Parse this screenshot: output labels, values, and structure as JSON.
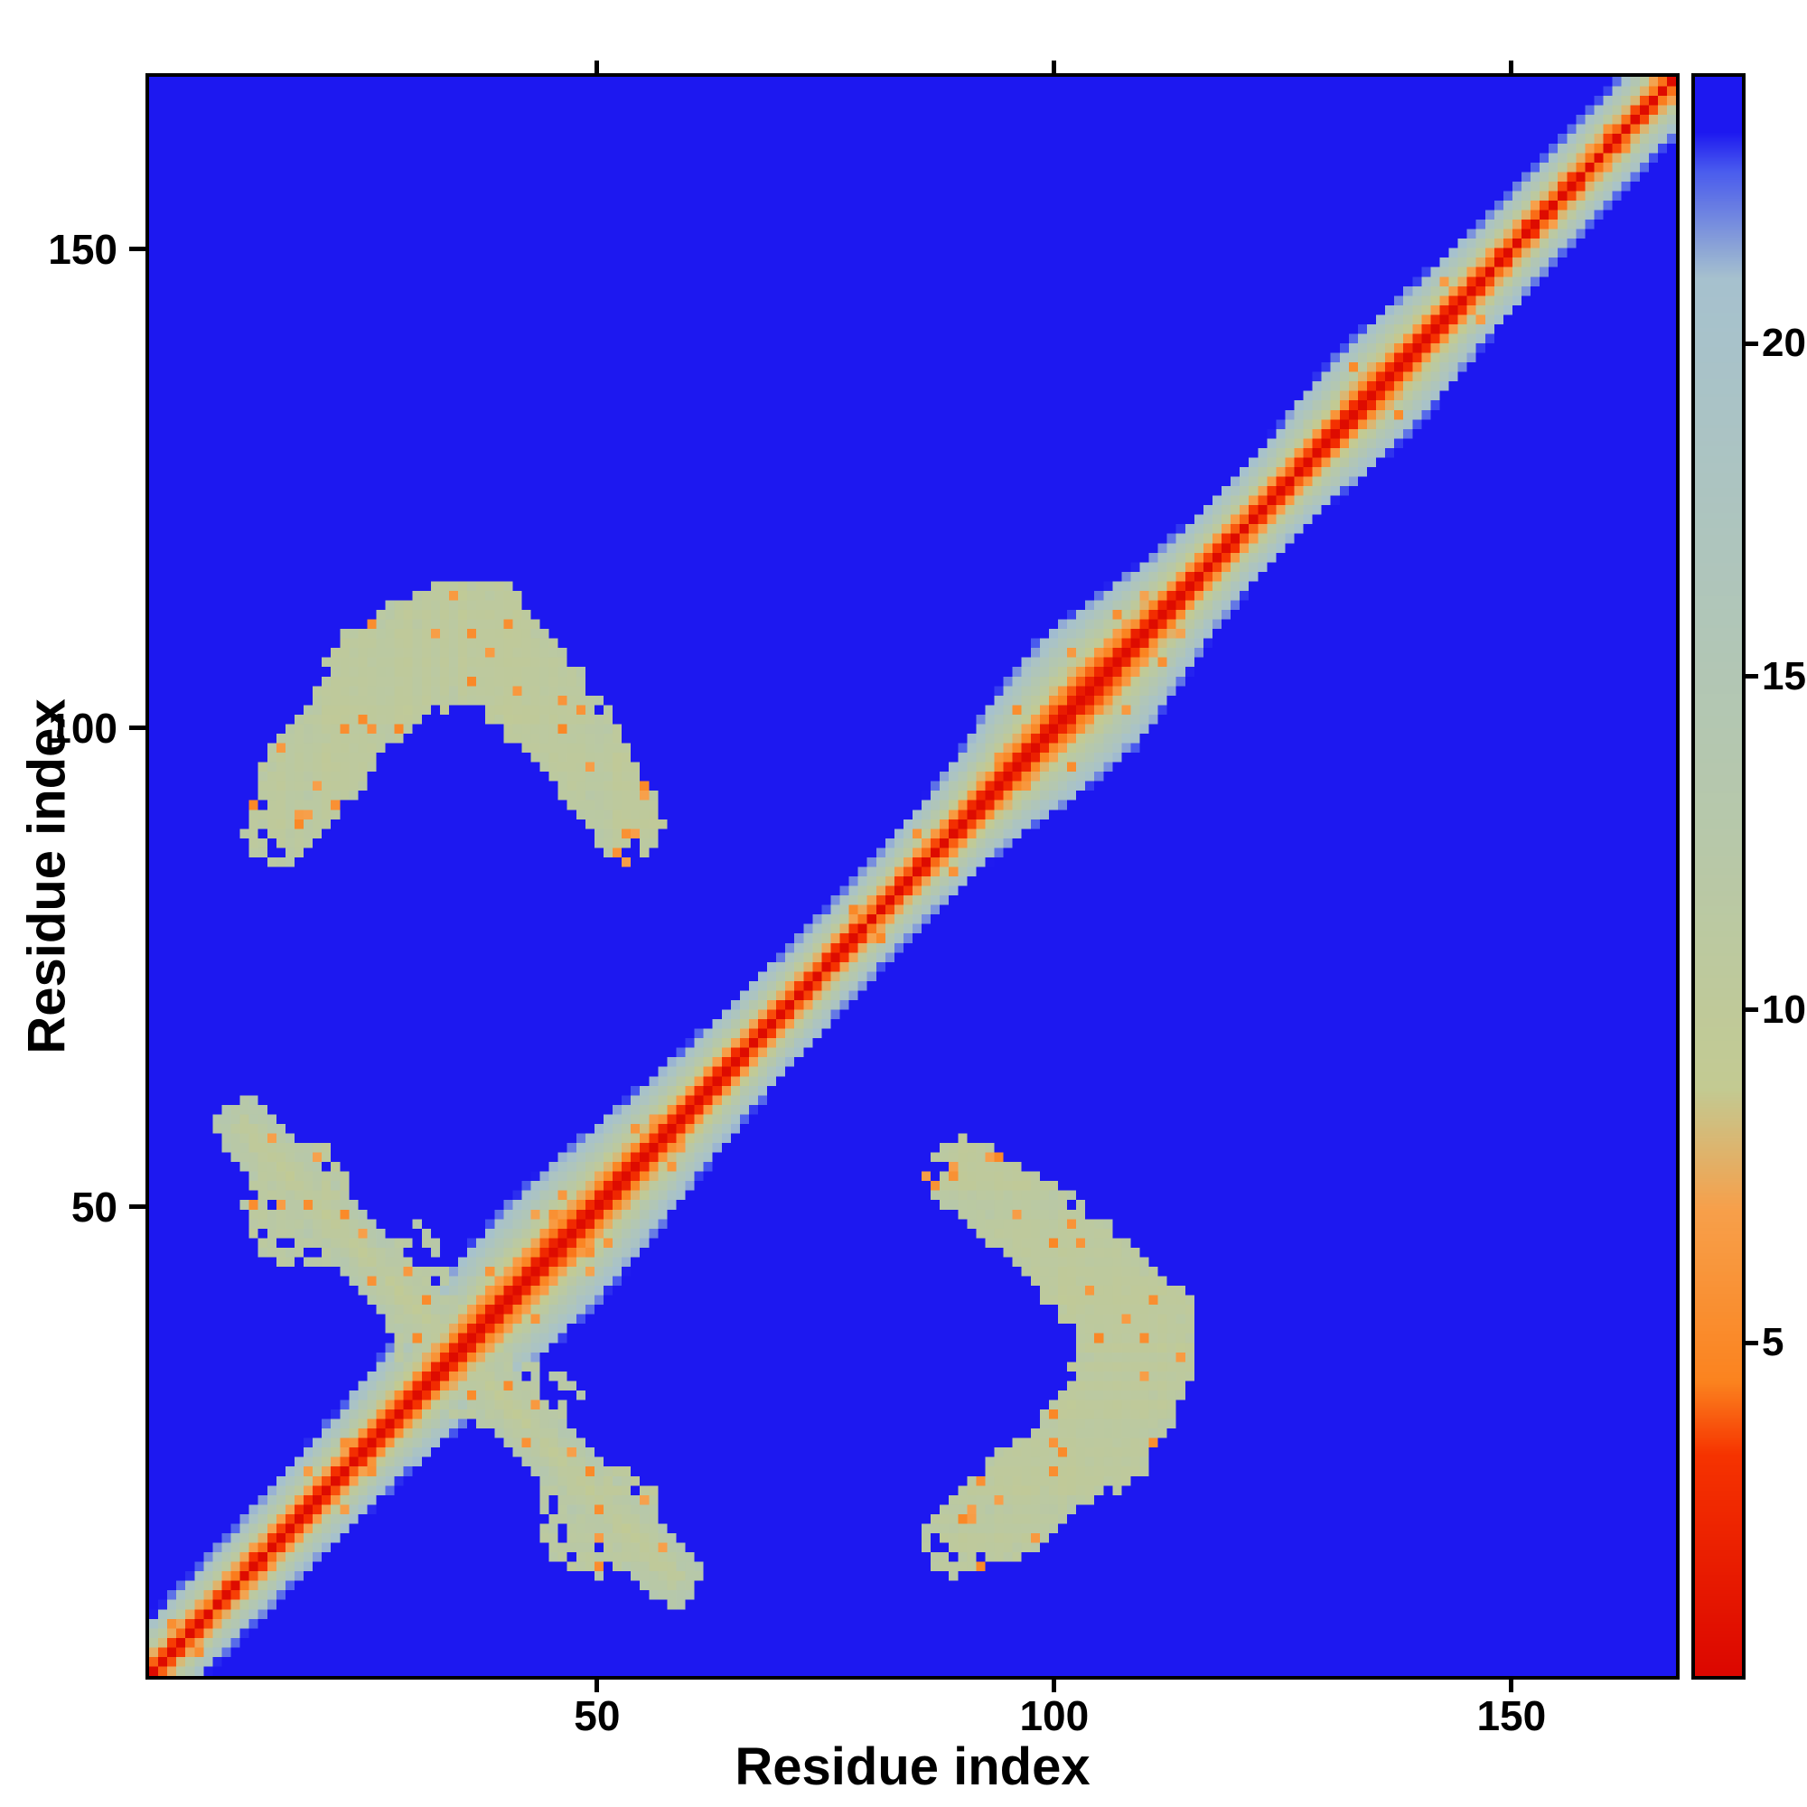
{
  "figure": {
    "background_color": "#ffffff",
    "axis_color": "#000000"
  },
  "chart_data": {
    "type": "heatmap",
    "title": "",
    "xlabel": "Residue index",
    "ylabel": "Residue index",
    "x_ticks": [
      50,
      100,
      150
    ],
    "y_ticks": [
      50,
      100,
      150
    ],
    "axis_range": [
      1,
      168
    ],
    "n_residues": 168,
    "values_are": "pairwise residue-residue distance map, capped at colorbar maximum",
    "value_range": [
      0,
      24
    ],
    "background_value": 24,
    "colorbar": {
      "position": "right",
      "ticks": [
        5,
        10,
        15,
        20
      ],
      "range": [
        0,
        24
      ]
    },
    "colormap_stops": [
      {
        "value": 0.0,
        "color": "#dc0700"
      },
      {
        "value": 3.3,
        "color": "#f63300"
      },
      {
        "value": 4.4,
        "color": "#fb831f"
      },
      {
        "value": 7.0,
        "color": "#f7a04b"
      },
      {
        "value": 8.8,
        "color": "#c3ca92"
      },
      {
        "value": 12.5,
        "color": "#b7c8a9"
      },
      {
        "value": 17.0,
        "color": "#aec5bd"
      },
      {
        "value": 21.0,
        "color": "#a6c1ce"
      },
      {
        "value": 22.6,
        "color": "#4a5cee"
      },
      {
        "value": 23.2,
        "color": "#1d18f0"
      },
      {
        "value": 24.0,
        "color": "#1d18f0"
      }
    ],
    "diagonal_band": {
      "base_scale": 3.8,
      "max_offset": 11,
      "bulges": [
        {
          "center": 44,
          "width": 14,
          "depth": 1.55
        },
        {
          "center": 103,
          "width": 9,
          "depth": 1.7
        },
        {
          "center": 136,
          "width": 7,
          "depth": 1.0
        }
      ]
    },
    "antidiagonal_streak": {
      "sum": 69,
      "from": 11,
      "to": 58,
      "half_thickness": 3,
      "value": 10.5
    },
    "clusters": [
      {
        "name": "arc-upper-left",
        "shape": "arc",
        "x_from": 15,
        "x_to": 53,
        "y_base": 90,
        "arch_height": 19,
        "radius": 4,
        "value": 11.5
      },
      {
        "name": "butterfly-left-wing",
        "shape": "blob",
        "cx": 17,
        "cy": 50,
        "rx": 6,
        "ry": 7,
        "value": 11.5
      },
      {
        "name": "butterfly-upper-finger",
        "shape": "blob",
        "cx": 30,
        "cy": 40,
        "rx": 4,
        "ry": 8,
        "value": 12
      }
    ],
    "symmetric": true,
    "orange_speckle": {
      "probability": 0.04,
      "value_range": [
        4.8,
        7.2
      ]
    },
    "noise_amplitude": 1.2,
    "seed": 1337
  }
}
